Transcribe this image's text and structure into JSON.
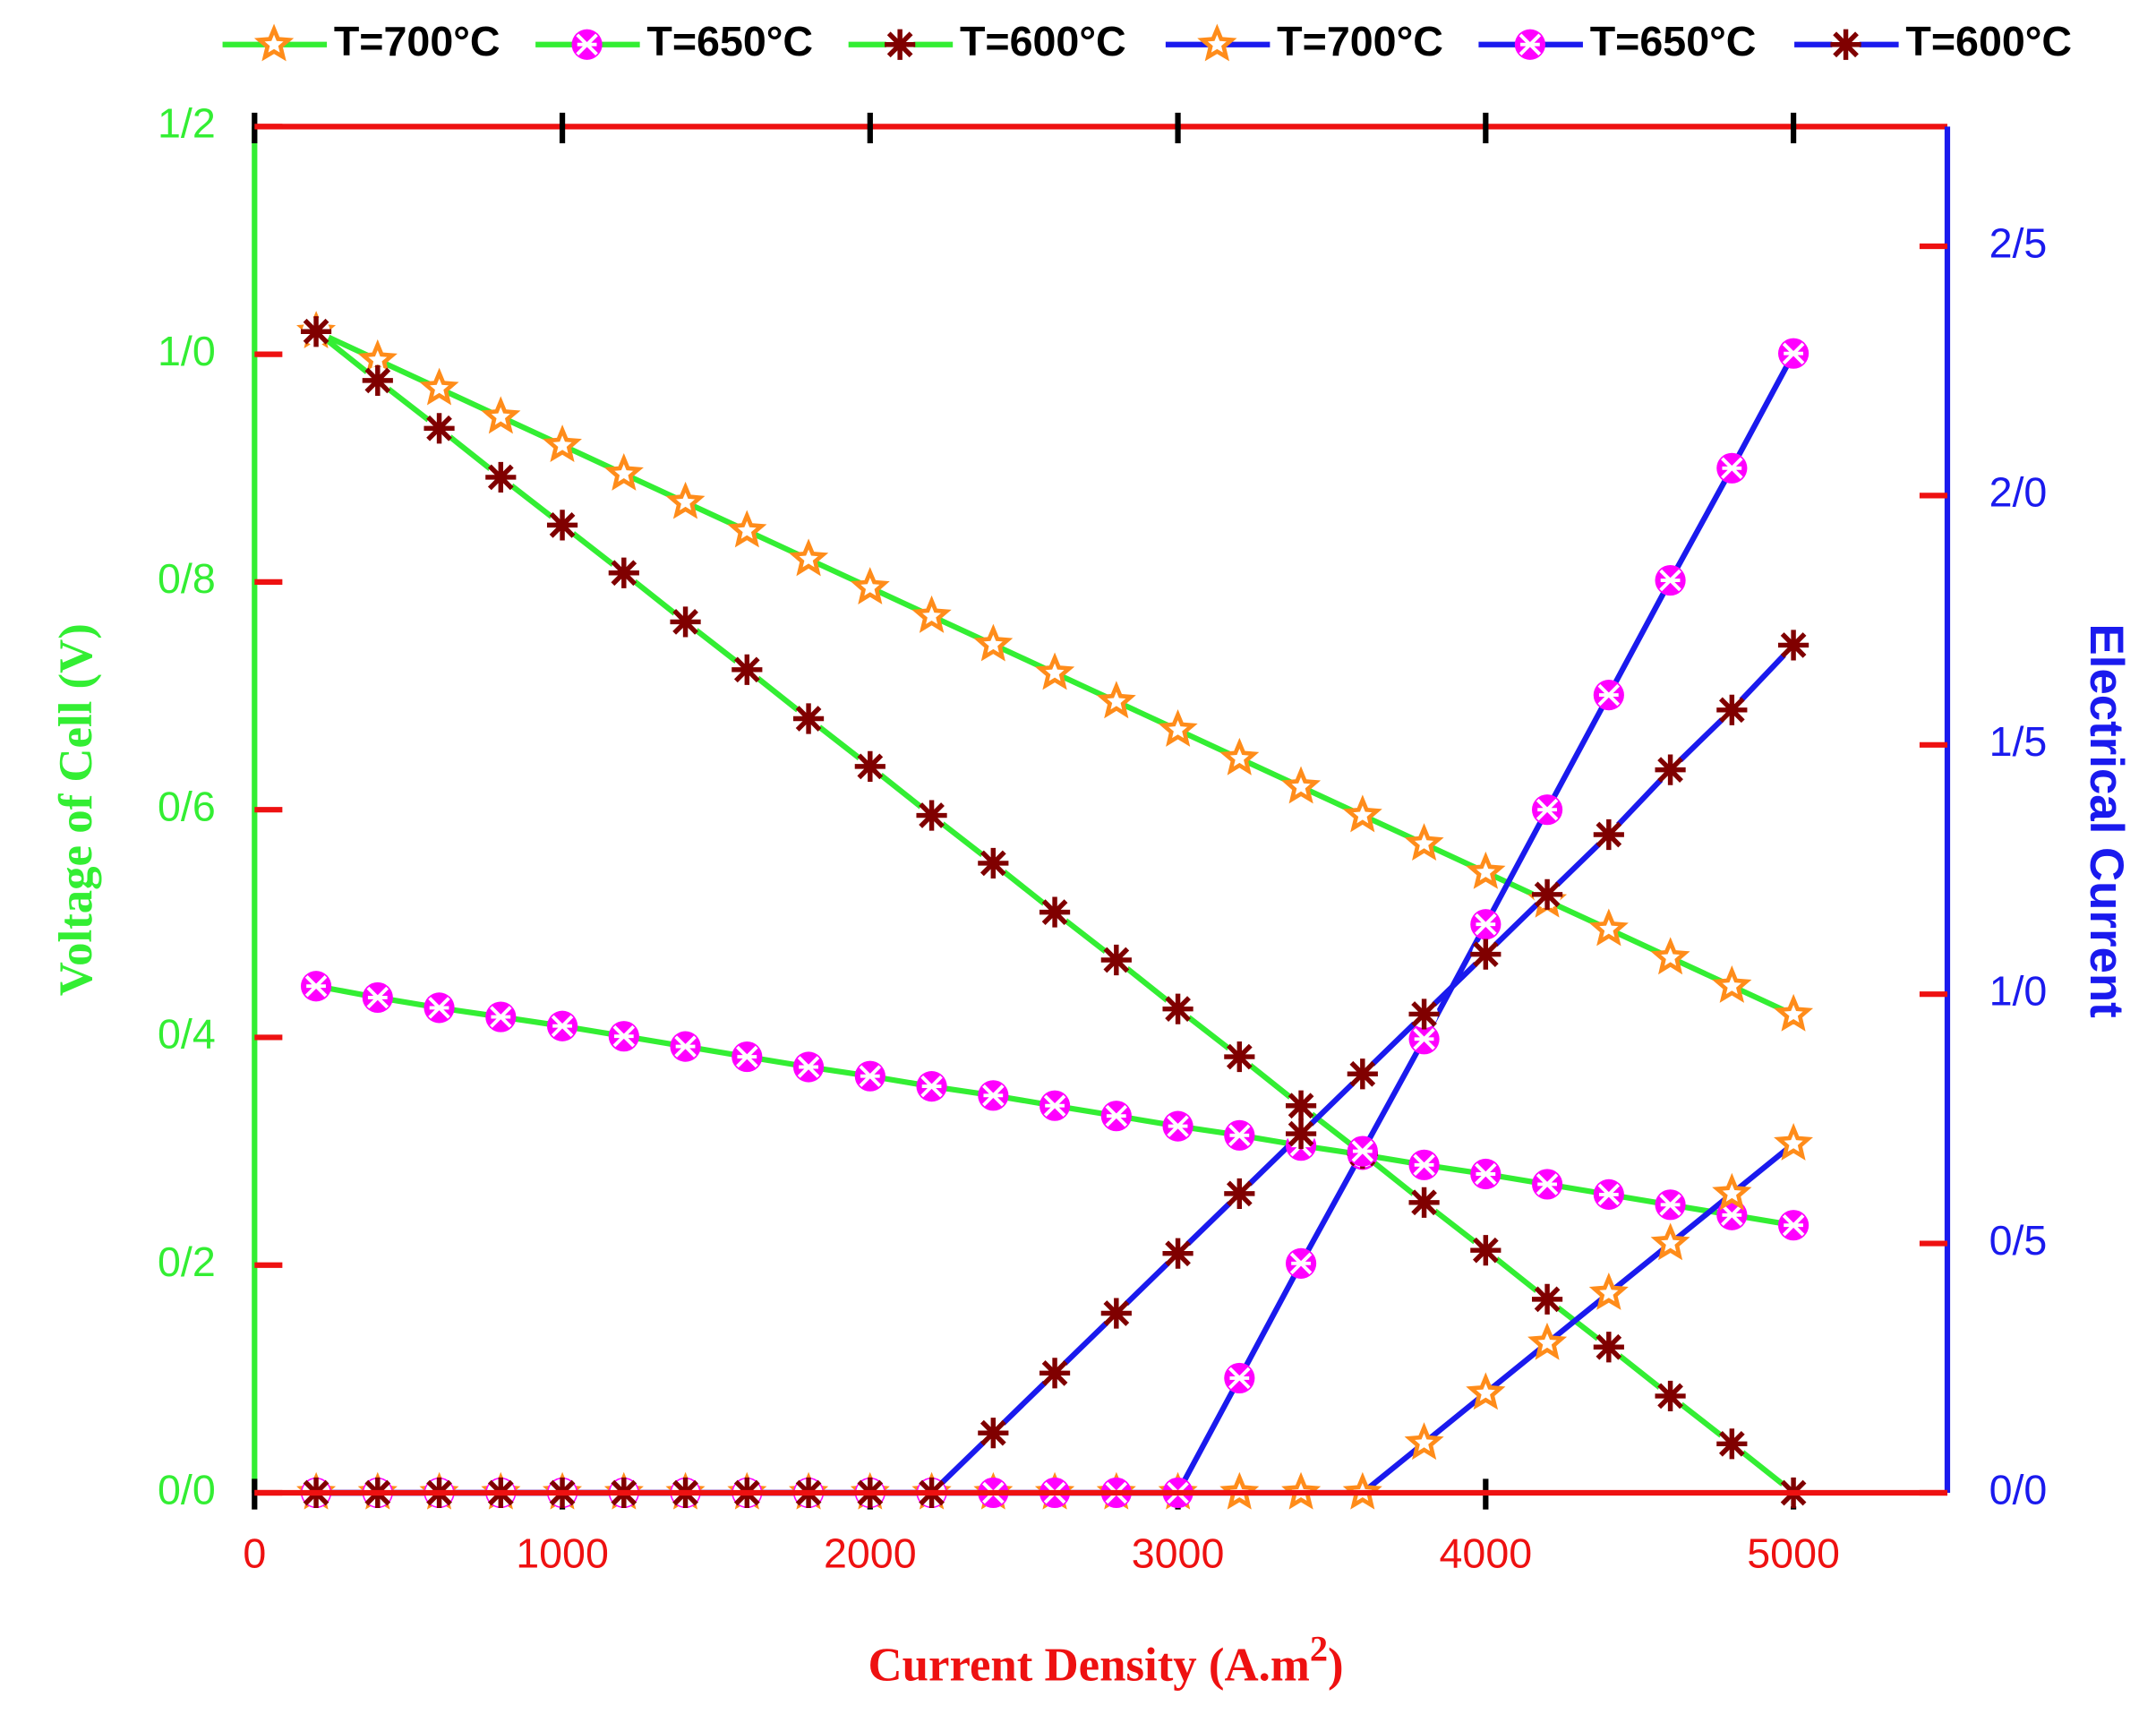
{
  "chart_data": {
    "type": "line",
    "x_label": {
      "text": "Current Density (A.m",
      "sup": "2",
      "close": ")"
    },
    "y_label": "Voltage of Cell (V)",
    "y2_label": "Electrical Current",
    "x": [
      200,
      400,
      600,
      800,
      1000,
      1200,
      1400,
      1600,
      1800,
      2000,
      2200,
      2400,
      2600,
      2800,
      3000,
      3200,
      3400,
      3600,
      3800,
      4000,
      4200,
      4400,
      4600,
      4800,
      5000
    ],
    "xlim": [
      0,
      5500
    ],
    "xticks": [
      0,
      1000,
      2000,
      3000,
      4000,
      5000
    ],
    "ylim": [
      0,
      1.2
    ],
    "yticks": [
      {
        "value": 0,
        "label": "0/0"
      },
      {
        "value": 0.2,
        "label": "0/2"
      },
      {
        "value": 0.4,
        "label": "0/4"
      },
      {
        "value": 0.6,
        "label": "0/6"
      },
      {
        "value": 0.8,
        "label": "0/8"
      },
      {
        "value": 1.0,
        "label": "1/0"
      },
      {
        "value": 1.2,
        "label": "1/2"
      }
    ],
    "y2lim": [
      0,
      2.74
    ],
    "y2ticks": [
      {
        "value": 0,
        "label": "0/0"
      },
      {
        "value": 0.5,
        "label": "0/5"
      },
      {
        "value": 1.0,
        "label": "1/0"
      },
      {
        "value": 1.5,
        "label": "1/5"
      },
      {
        "value": 2.0,
        "label": "2/0"
      },
      {
        "value": 2.5,
        "label": "2/5"
      }
    ],
    "legend": "top",
    "series": [
      {
        "name": "T=700°C",
        "color": "#ff8c1a",
        "line_color": "#33ee33",
        "marker": "star",
        "axis": "y",
        "values": [
          1.02,
          0.995,
          0.97,
          0.945,
          0.92,
          0.895,
          0.87,
          0.845,
          0.82,
          0.795,
          0.77,
          0.745,
          0.72,
          0.695,
          0.67,
          0.645,
          0.62,
          0.595,
          0.57,
          0.545,
          0.52,
          0.495,
          0.47,
          0.445,
          0.42
        ]
      },
      {
        "name": "T=650°C",
        "color": "#ff00ff",
        "line_color": "#33ee33",
        "marker": "crossed-circle",
        "axis": "y",
        "values": [
          0.445,
          0.435,
          0.426,
          0.418,
          0.41,
          0.401,
          0.392,
          0.383,
          0.374,
          0.366,
          0.357,
          0.349,
          0.34,
          0.331,
          0.322,
          0.314,
          0.305,
          0.297,
          0.288,
          0.28,
          0.271,
          0.262,
          0.253,
          0.244,
          0.235
        ]
      },
      {
        "name": "T=600°C",
        "color": "#800000",
        "line_color": "#33ee33",
        "marker": "asterisk",
        "axis": "y",
        "values": [
          1.02,
          0.977,
          0.935,
          0.892,
          0.85,
          0.808,
          0.765,
          0.723,
          0.68,
          0.638,
          0.595,
          0.553,
          0.51,
          0.468,
          0.425,
          0.383,
          0.34,
          0.298,
          0.255,
          0.213,
          0.17,
          0.128,
          0.085,
          0.043,
          0.0
        ]
      },
      {
        "name": "T=700°C",
        "color": "#ff8c1a",
        "line_color": "#1a1aee",
        "marker": "star",
        "axis": "y2",
        "values": [
          0,
          0,
          0,
          0,
          0,
          0,
          0,
          0,
          0,
          0,
          0,
          0,
          0,
          0,
          0,
          0,
          0,
          0,
          0.1,
          0.2,
          0.3,
          0.4,
          0.5,
          0.6,
          0.7
        ]
      },
      {
        "name": "T=650°C",
        "color": "#ff00ff",
        "line_color": "#1a1aee",
        "marker": "crossed-circle",
        "axis": "y2",
        "values": [
          0,
          0,
          0,
          0,
          0,
          0,
          0,
          0,
          0,
          0,
          0,
          0,
          0,
          0,
          0,
          0.23,
          0.46,
          0.685,
          0.91,
          1.14,
          1.37,
          1.6,
          1.83,
          2.055,
          2.285
        ]
      },
      {
        "name": "T=600°C",
        "color": "#800000",
        "line_color": "#1a1aee",
        "marker": "asterisk",
        "axis": "y2",
        "values": [
          0,
          0,
          0,
          0,
          0,
          0,
          0,
          0,
          0,
          0,
          0,
          0.12,
          0.24,
          0.36,
          0.48,
          0.6,
          0.72,
          0.84,
          0.96,
          1.08,
          1.2,
          1.32,
          1.45,
          1.57,
          1.7
        ]
      }
    ]
  }
}
